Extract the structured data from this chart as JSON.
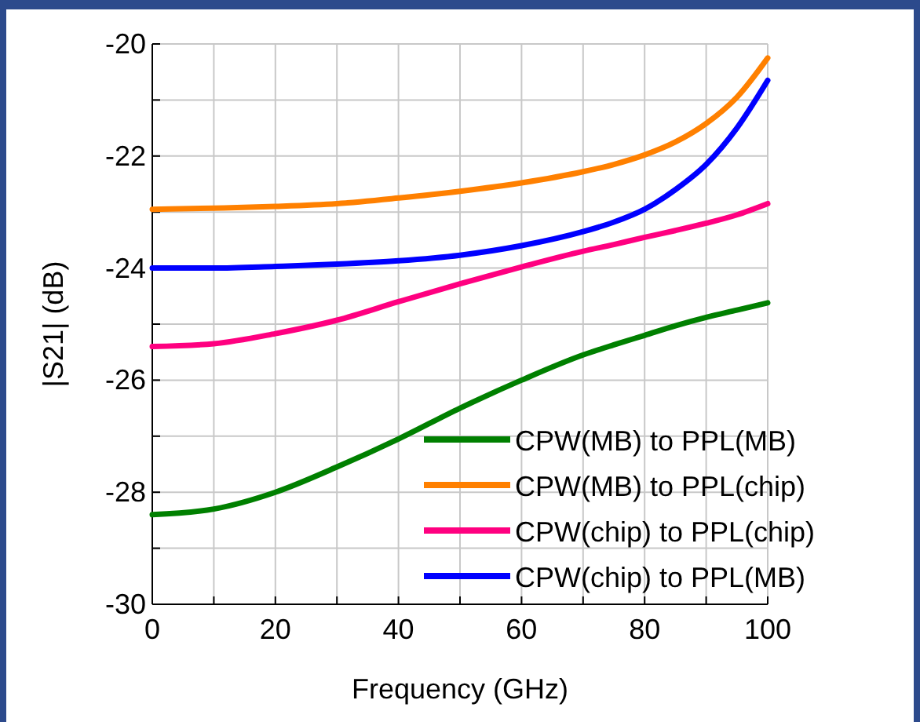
{
  "chart_data": {
    "type": "line",
    "xlabel": "Frequency (GHz)",
    "ylabel": "|S21| (dB)",
    "x": [
      0,
      10,
      20,
      30,
      40,
      50,
      60,
      70,
      75,
      80,
      85,
      90,
      95,
      100
    ],
    "series": [
      {
        "name": "CPW(MB) to PPL(MB)",
        "color": "#008000",
        "values": [
          -28.4,
          -28.3,
          -28.0,
          -27.55,
          -27.05,
          -26.5,
          -26.0,
          -25.55,
          -25.37,
          -25.2,
          -25.03,
          -24.88,
          -24.75,
          -24.62
        ]
      },
      {
        "name": "CPW(MB) to PPL(chip)",
        "color": "#ff8000",
        "values": [
          -22.95,
          -22.93,
          -22.9,
          -22.85,
          -22.75,
          -22.63,
          -22.48,
          -22.28,
          -22.15,
          -21.98,
          -21.75,
          -21.42,
          -20.95,
          -20.25
        ]
      },
      {
        "name": "CPW(chip) to PPL(chip)",
        "color": "#ff0080",
        "values": [
          -25.4,
          -25.35,
          -25.17,
          -24.93,
          -24.6,
          -24.28,
          -23.98,
          -23.7,
          -23.58,
          -23.45,
          -23.33,
          -23.2,
          -23.05,
          -22.85
        ]
      },
      {
        "name": "CPW(chip) to PPL(MB)",
        "color": "#0000ff",
        "values": [
          -24.0,
          -24.0,
          -23.97,
          -23.93,
          -23.87,
          -23.77,
          -23.6,
          -23.35,
          -23.18,
          -22.95,
          -22.6,
          -22.15,
          -21.5,
          -20.65
        ]
      }
    ],
    "xlim": [
      0,
      100
    ],
    "xticks": [
      0,
      {
        "value": 10,
        "label": null
      },
      20,
      {
        "value": 30,
        "label": null
      },
      40,
      {
        "value": 50,
        "label": null
      },
      60,
      {
        "value": 70,
        "label": null
      },
      80,
      {
        "value": 90,
        "label": null
      },
      100
    ],
    "ylim": [
      -30,
      -20
    ],
    "yticks": [
      -30,
      {
        "value": -29,
        "label": null
      },
      -28,
      {
        "value": -27,
        "label": null
      },
      -26,
      {
        "value": -25,
        "label": null
      },
      -24,
      {
        "value": -23,
        "label": null
      },
      -22,
      {
        "value": -21,
        "label": null
      },
      -20
    ],
    "grid": true,
    "legend": "bottom right",
    "marker": "none",
    "line_style": "solid"
  }
}
